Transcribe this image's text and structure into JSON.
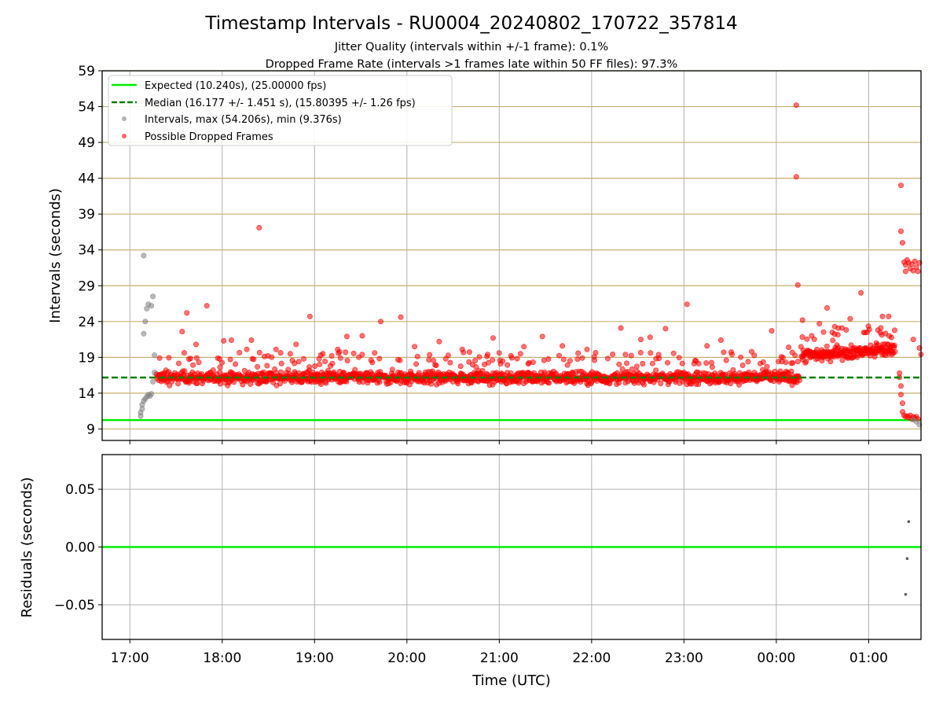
{
  "figure": {
    "title": "Timestamp Intervals - RU0004_20240802_170722_357814",
    "subtitle_1": "Jitter Quality (intervals within +/-1 frame): 0.1%",
    "subtitle_2": "Dropped Frame Rate (intervals >1 frames late within 50 FF files): 97.3%"
  },
  "colors": {
    "expected": "#00ee00",
    "median": "#008000",
    "intervals": "#808080",
    "dropped": "#ff0000",
    "hgrid": "#c8b070",
    "grid": "#b0b0b0"
  },
  "chart_data": [
    {
      "type": "scatter",
      "title": "",
      "xlabel": "",
      "ylabel": "Intervals (seconds)",
      "xlim": [
        "16:42",
        "25:34"
      ],
      "ylim": [
        7.4,
        59
      ],
      "yticks": [
        9,
        14,
        19,
        24,
        29,
        34,
        39,
        44,
        49,
        54,
        59
      ],
      "xticks": [
        "17:00",
        "18:00",
        "19:00",
        "20:00",
        "21:00",
        "22:00",
        "23:00",
        "00:00",
        "01:00"
      ],
      "grid": "horizontal gold lines at y ticks, vertical gray lines at x ticks",
      "legend_position": "upper left",
      "legend": {
        "expected": "Expected (10.240s), (25.00000 fps)",
        "median": "Median (16.177 +/- 1.451 s), (15.80395 +/- 1.26 fps)",
        "intervals": "Intervals, max (54.206s), min (9.376s)",
        "dropped": "Possible Dropped Frames"
      },
      "reference_lines": {
        "expected": 10.24,
        "median": 16.177
      },
      "series": [
        {
          "name": "Intervals, max (54.206s), min (9.376s)",
          "points_gray_startup": [
            [
              "17:07",
              10.8
            ],
            [
              "17:07",
              11.3
            ],
            [
              "17:08",
              11.8
            ],
            [
              "17:08",
              12.4
            ],
            [
              "17:09",
              12.9
            ],
            [
              "17:10",
              13.2
            ],
            [
              "17:11",
              13.5
            ],
            [
              "17:12",
              13.8
            ],
            [
              "17:13",
              13.6
            ],
            [
              "17:14",
              13.9
            ],
            [
              "17:09",
              22.3
            ],
            [
              "17:10",
              24.0
            ],
            [
              "17:11",
              25.8
            ],
            [
              "17:12",
              26.4
            ],
            [
              "17:14",
              26.2
            ],
            [
              "17:15",
              27.5
            ],
            [
              "17:16",
              19.3
            ],
            [
              "17:16",
              16.9
            ],
            [
              "17:09",
              33.2
            ],
            [
              "17:15",
              15.6
            ]
          ],
          "points_gray_end": [
            [
              "25:29",
              10.3
            ],
            [
              "25:31",
              10.0
            ],
            [
              "25:33",
              9.6
            ]
          ]
        },
        {
          "name": "Possible Dropped Frames",
          "base_range": [
            "17:17",
            "00:15"
          ],
          "base_level": 16.2,
          "late_range": [
            "00:16",
            "01:17"
          ],
          "late_level": 19.3,
          "outliers": [
            [
              "17:37",
              25.2
            ],
            [
              "17:50",
              26.2
            ],
            [
              "17:34",
              22.6
            ],
            [
              "17:43",
              20.8
            ],
            [
              "18:01",
              21.3
            ],
            [
              "18:06",
              21.4
            ],
            [
              "18:16",
              20.1
            ],
            [
              "18:19",
              21.4
            ],
            [
              "18:24",
              37.1
            ],
            [
              "18:35",
              20.1
            ],
            [
              "18:57",
              24.7
            ],
            [
              "18:48",
              20.8
            ],
            [
              "19:15",
              20.1
            ],
            [
              "19:21",
              21.9
            ],
            [
              "19:31",
              22.0
            ],
            [
              "19:43",
              24.0
            ],
            [
              "19:56",
              24.6
            ],
            [
              "20:05",
              20.5
            ],
            [
              "20:21",
              21.2
            ],
            [
              "20:36",
              20.1
            ],
            [
              "20:56",
              21.7
            ],
            [
              "21:16",
              20.5
            ],
            [
              "21:28",
              21.9
            ],
            [
              "21:41",
              20.6
            ],
            [
              "21:57",
              20.1
            ],
            [
              "22:19",
              23.1
            ],
            [
              "22:32",
              21.5
            ],
            [
              "22:38",
              21.8
            ],
            [
              "22:48",
              23.0
            ],
            [
              "23:02",
              26.4
            ],
            [
              "23:15",
              20.6
            ],
            [
              "23:24",
              21.4
            ],
            [
              "23:44",
              19.8
            ],
            [
              "23:57",
              22.7
            ],
            [
              "00:08",
              20.4
            ],
            [
              "00:13",
              54.2
            ],
            [
              "00:13",
              44.2
            ],
            [
              "00:14",
              29.1
            ],
            [
              "00:17",
              24.2
            ],
            [
              "00:23",
              22.0
            ],
            [
              "00:28",
              23.7
            ],
            [
              "00:33",
              25.9
            ],
            [
              "00:38",
              23.3
            ],
            [
              "00:48",
              24.4
            ],
            [
              "00:55",
              28.0
            ],
            [
              "00:59",
              22.5
            ],
            [
              "01:06",
              22.8
            ],
            [
              "01:09",
              24.7
            ],
            [
              "01:13",
              24.7
            ],
            [
              "01:05",
              21.0
            ]
          ],
          "end_cluster": [
            [
              "01:21",
              43.0
            ],
            [
              "01:21",
              36.6
            ],
            [
              "01:22",
              35.0
            ],
            [
              "01:23",
              32.3
            ],
            [
              "01:24",
              31.9
            ],
            [
              "01:25",
              32.6
            ],
            [
              "01:26",
              32.2
            ],
            [
              "01:27",
              31.4
            ],
            [
              "01:28",
              32.0
            ],
            [
              "01:29",
              31.1
            ],
            [
              "01:30",
              32.4
            ],
            [
              "01:31",
              31.6
            ],
            [
              "01:32",
              31.0
            ],
            [
              "01:33",
              32.2
            ],
            [
              "01:24",
              31.0
            ],
            [
              "01:20",
              16.8
            ],
            [
              "01:20",
              16.2
            ],
            [
              "01:21",
              15.0
            ],
            [
              "01:21",
              13.8
            ],
            [
              "01:22",
              12.6
            ],
            [
              "01:22",
              11.4
            ],
            [
              "01:23",
              10.9
            ],
            [
              "01:24",
              10.7
            ],
            [
              "01:25",
              10.8
            ],
            [
              "01:26",
              10.6
            ],
            [
              "01:27",
              10.9
            ],
            [
              "01:28",
              10.4
            ],
            [
              "01:29",
              10.7
            ],
            [
              "01:30",
              10.5
            ],
            [
              "01:31",
              10.7
            ],
            [
              "01:32",
              10.4
            ],
            [
              "01:33",
              20.3
            ],
            [
              "01:34",
              19.4
            ],
            [
              "01:29",
              21.5
            ]
          ]
        }
      ]
    },
    {
      "type": "scatter",
      "title": "",
      "xlabel": "Time (UTC)",
      "ylabel": "Residuals (seconds)",
      "xlim": [
        "16:42",
        "25:34"
      ],
      "ylim": [
        -0.08,
        0.08
      ],
      "yticks": [
        -0.05,
        0.0,
        0.05
      ],
      "ytick_labels": [
        "−0.05",
        "0.00",
        "0.05"
      ],
      "xticks": [
        "17:00",
        "18:00",
        "19:00",
        "20:00",
        "21:00",
        "22:00",
        "23:00",
        "00:00",
        "01:00"
      ],
      "grid": "on",
      "reference_lines": {
        "expected": 0.0
      },
      "series": [
        {
          "points": [
            [
              "25:26",
              0.022
            ],
            [
              "25:25",
              -0.01
            ],
            [
              "25:24",
              -0.041
            ]
          ]
        }
      ]
    }
  ]
}
